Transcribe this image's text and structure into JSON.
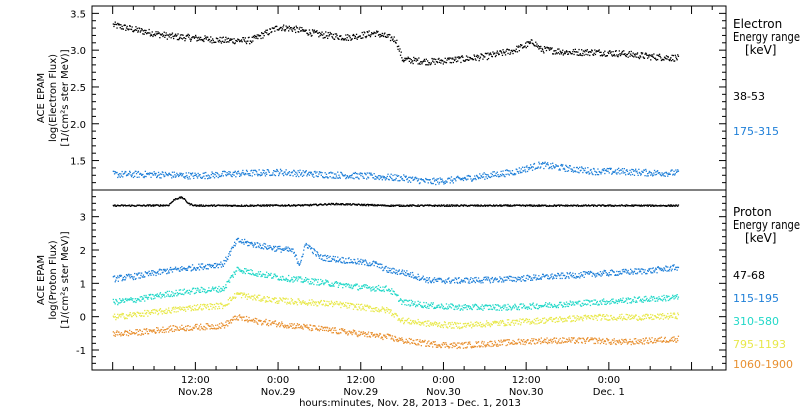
{
  "chart_data": [
    {
      "type": "scatter",
      "panel": "electron",
      "ylabel_lines": [
        "ACE EPAM",
        "log(Electron Flux)",
        "[1/(cm²s ster MeV)]"
      ],
      "legend_title_lines": [
        "Electron",
        "Energy range",
        "[keV]"
      ],
      "yticks": [
        "1.5",
        "2.0",
        "2.5",
        "3.0",
        "3.5"
      ],
      "ylim": [
        1.1,
        3.6
      ],
      "series": [
        {
          "name": "38-53",
          "color": "#000000",
          "x": [
            0,
            4,
            8,
            12,
            16,
            20,
            24,
            26,
            30,
            34,
            38,
            41,
            42,
            46,
            50,
            54,
            58,
            61,
            62,
            66,
            70,
            74,
            78,
            82
          ],
          "y": [
            3.35,
            3.27,
            3.2,
            3.17,
            3.14,
            3.14,
            3.32,
            3.3,
            3.22,
            3.18,
            3.24,
            3.15,
            2.88,
            2.85,
            2.88,
            2.92,
            3.0,
            3.12,
            3.02,
            2.98,
            2.98,
            2.96,
            2.92,
            2.9
          ]
        },
        {
          "name": "175-315",
          "color": "#1e7fd8",
          "x": [
            0,
            6,
            12,
            18,
            24,
            30,
            36,
            42,
            46,
            50,
            54,
            58,
            62,
            66,
            70,
            74,
            78,
            82
          ],
          "y": [
            1.32,
            1.32,
            1.3,
            1.33,
            1.35,
            1.32,
            1.3,
            1.27,
            1.22,
            1.25,
            1.3,
            1.35,
            1.45,
            1.4,
            1.36,
            1.36,
            1.34,
            1.34
          ]
        }
      ]
    },
    {
      "type": "scatter",
      "panel": "proton",
      "ylabel_lines": [
        "ACE EPAM",
        "log(Proton Flux)",
        "[1/(cm²s ster MeV)]"
      ],
      "legend_title_lines": [
        "Proton",
        "Energy range",
        "[keV]"
      ],
      "yticks": [
        "-1",
        "0",
        "1",
        "2",
        "3"
      ],
      "ylim": [
        -1.6,
        3.8
      ],
      "series": [
        {
          "name": "47-68",
          "color": "#000000",
          "x": [
            0,
            4,
            8,
            9,
            10,
            11,
            12,
            20,
            28,
            32,
            40,
            50,
            60,
            70,
            82
          ],
          "y": [
            3.35,
            3.35,
            3.36,
            3.55,
            3.6,
            3.4,
            3.35,
            3.35,
            3.36,
            3.4,
            3.35,
            3.35,
            3.35,
            3.35,
            3.35
          ]
        },
        {
          "name": "115-195",
          "color": "#1e7fd8",
          "x": [
            0,
            4,
            8,
            12,
            16,
            18,
            20,
            24,
            26,
            27,
            28,
            30,
            34,
            38,
            40,
            42,
            46,
            50,
            54,
            58,
            62,
            66,
            70,
            74,
            78,
            82
          ],
          "y": [
            1.15,
            1.25,
            1.4,
            1.5,
            1.6,
            2.3,
            2.2,
            2.05,
            2.0,
            1.6,
            2.2,
            1.8,
            1.7,
            1.6,
            1.4,
            1.35,
            1.1,
            1.1,
            1.12,
            1.15,
            1.2,
            1.25,
            1.3,
            1.35,
            1.4,
            1.5
          ]
        },
        {
          "name": "310-580",
          "color": "#22d8c8",
          "x": [
            0,
            4,
            8,
            12,
            16,
            18,
            20,
            24,
            28,
            32,
            36,
            40,
            42,
            46,
            50,
            54,
            58,
            62,
            66,
            70,
            74,
            78,
            82
          ],
          "y": [
            0.45,
            0.55,
            0.7,
            0.8,
            0.85,
            1.45,
            1.35,
            1.2,
            1.1,
            1.0,
            0.9,
            0.85,
            0.45,
            0.35,
            0.3,
            0.3,
            0.3,
            0.35,
            0.4,
            0.45,
            0.5,
            0.55,
            0.6
          ]
        },
        {
          "name": "795-1193",
          "color": "#e8e84a",
          "x": [
            0,
            4,
            8,
            12,
            16,
            18,
            20,
            24,
            28,
            32,
            36,
            40,
            42,
            46,
            50,
            54,
            58,
            62,
            66,
            70,
            74,
            78,
            82
          ],
          "y": [
            0.0,
            0.1,
            0.2,
            0.3,
            0.35,
            0.7,
            0.6,
            0.5,
            0.45,
            0.4,
            0.3,
            0.2,
            -0.1,
            -0.2,
            -0.25,
            -0.2,
            -0.15,
            -0.1,
            -0.05,
            0.0,
            0.0,
            0.0,
            0.05
          ]
        },
        {
          "name": "1060-1900",
          "color": "#e89030",
          "x": [
            0,
            4,
            8,
            12,
            16,
            18,
            20,
            24,
            28,
            32,
            36,
            40,
            42,
            46,
            50,
            54,
            58,
            62,
            66,
            70,
            74,
            78,
            82
          ],
          "y": [
            -0.5,
            -0.45,
            -0.35,
            -0.3,
            -0.25,
            0.0,
            -0.1,
            -0.2,
            -0.3,
            -0.4,
            -0.5,
            -0.6,
            -0.7,
            -0.8,
            -0.85,
            -0.8,
            -0.75,
            -0.7,
            -0.7,
            -0.7,
            -0.75,
            -0.7,
            -0.65
          ]
        }
      ]
    }
  ],
  "x_axis": {
    "xlabel": "hours:minutes, Nov. 28, 2013 - Dec. 1, 2013",
    "range_hours": [
      -3,
      89
    ],
    "ticks": [
      {
        "hour": 12,
        "time": "12:00",
        "date": "Nov.28"
      },
      {
        "hour": 24,
        "time": "0:00",
        "date": "Nov.29"
      },
      {
        "hour": 36,
        "time": "12:00",
        "date": "Nov.29"
      },
      {
        "hour": 48,
        "time": "0:00",
        "date": "Nov.30"
      },
      {
        "hour": 60,
        "time": "12:00",
        "date": "Nov.30"
      },
      {
        "hour": 72,
        "time": "0:00",
        "date": "Dec. 1"
      }
    ]
  }
}
